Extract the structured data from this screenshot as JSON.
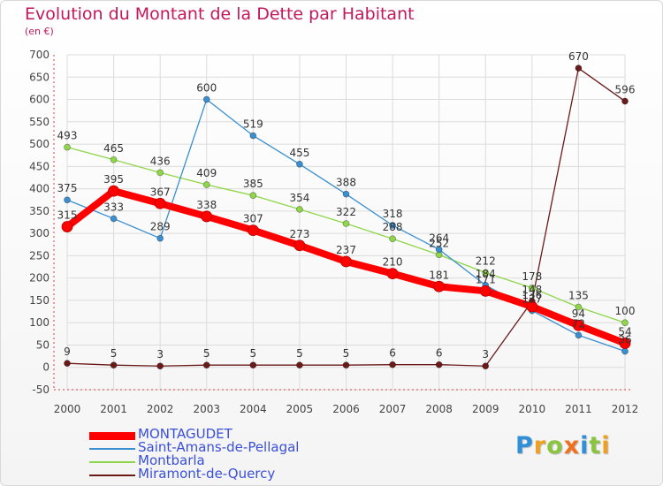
{
  "title": "Evolution du Montant de la Dette par Habitant",
  "subtitle": "(en €)",
  "logo": {
    "text": "Proxiti",
    "letters": [
      {
        "ch": "P",
        "color": "#2f8fd9"
      },
      {
        "ch": "r",
        "color": "#f0a020"
      },
      {
        "ch": "o",
        "color": "#8bc53f"
      },
      {
        "ch": "x",
        "color": "#f07020"
      },
      {
        "ch": "i",
        "color": "#2f8fd9"
      },
      {
        "ch": "t",
        "color": "#8bc53f"
      },
      {
        "ch": "i",
        "color": "#f0a020"
      }
    ]
  },
  "chart_data": {
    "type": "line",
    "title": "Evolution du Montant de la Dette par Habitant",
    "subtitle": "(en €)",
    "x": [
      "2000",
      "2001",
      "2002",
      "2003",
      "2004",
      "2005",
      "2006",
      "2007",
      "2008",
      "2009",
      "2010",
      "2011",
      "2012"
    ],
    "ylim": [
      -50,
      700
    ],
    "yticks": [
      -50,
      0,
      50,
      100,
      150,
      200,
      250,
      300,
      350,
      400,
      450,
      500,
      550,
      600,
      650,
      700
    ],
    "grid": true,
    "legend_position": "bottom-left",
    "series": [
      {
        "name": "MONTAGUDET",
        "color": "#ff0000",
        "values": [
          315,
          395,
          367,
          338,
          307,
          273,
          237,
          210,
          181,
          171,
          136,
          94,
          54
        ],
        "labels": [
          "315",
          "395",
          "367",
          "338",
          "307",
          "273",
          "237",
          "210",
          "181",
          "171",
          "136",
          "94",
          "54"
        ]
      },
      {
        "name": "Saint-Amans-de-Pellagal",
        "color": "#3a8fd0",
        "values": [
          375,
          333,
          289,
          600,
          519,
          455,
          388,
          318,
          264,
          184,
          127,
          72,
          36
        ],
        "labels": [
          "375",
          "333",
          "289",
          "600",
          "519",
          "455",
          "388",
          "318",
          "264",
          "184",
          "127",
          "72",
          "36"
        ]
      },
      {
        "name": "Montbarla",
        "color": "#8fd64a",
        "values": [
          493,
          465,
          436,
          409,
          385,
          354,
          322,
          288,
          252,
          212,
          178,
          135,
          100
        ],
        "labels": [
          "493",
          "465",
          "436",
          "409",
          "385",
          "354",
          "322",
          "288",
          "252",
          "212",
          "178",
          "135",
          "100"
        ]
      },
      {
        "name": "Miramont-de-Quercy",
        "color": "#6b1a1a",
        "values": [
          9,
          5,
          3,
          5,
          5,
          5,
          5,
          6,
          6,
          3,
          148,
          670,
          596
        ],
        "labels": [
          "9",
          "5",
          "3",
          "5",
          "5",
          "5",
          "5",
          "6",
          "6",
          "3",
          "148",
          "670",
          "596"
        ]
      }
    ]
  }
}
